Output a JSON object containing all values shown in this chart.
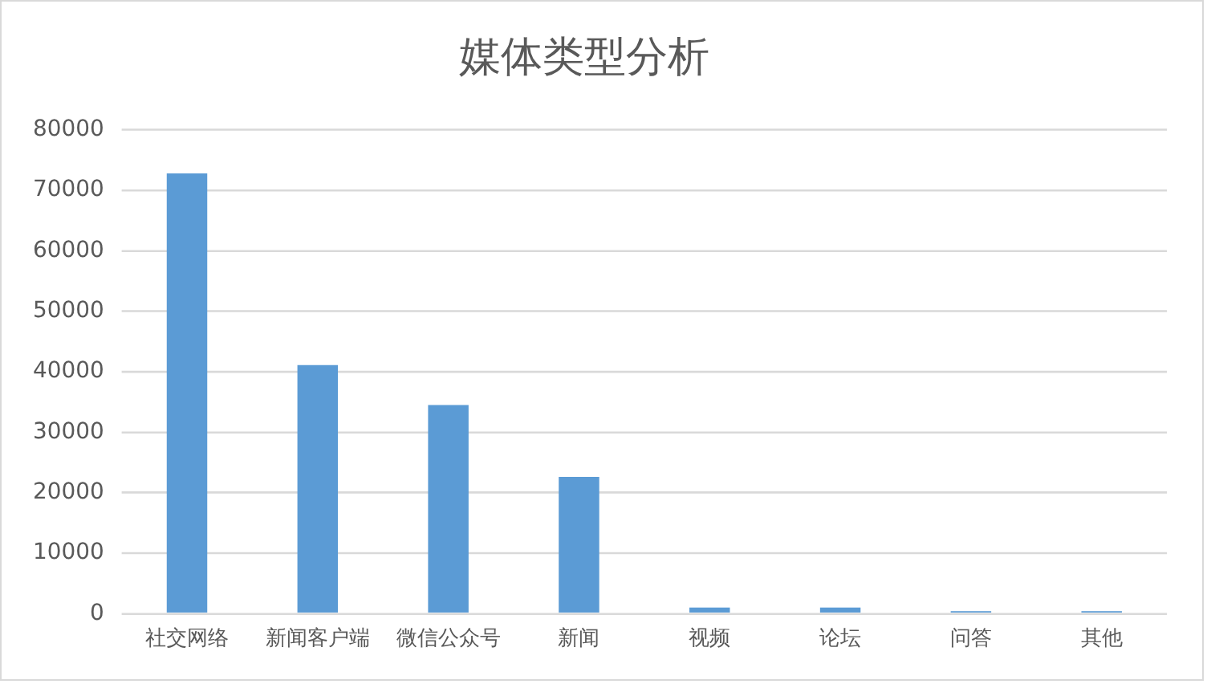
{
  "chart_data": {
    "type": "bar",
    "title": "媒体类型分析",
    "categories": [
      "社交网络",
      "新闻客户端",
      "微信公众号",
      "新闻",
      "视频",
      "论坛",
      "问答",
      "其他"
    ],
    "values": [
      72800,
      41100,
      34500,
      22600,
      1000,
      1000,
      400,
      400
    ],
    "color": "#5b9bd5",
    "ylim": [
      0,
      80000
    ],
    "yticks": [
      0,
      10000,
      20000,
      30000,
      40000,
      50000,
      60000,
      70000,
      80000
    ],
    "grid": "y"
  }
}
